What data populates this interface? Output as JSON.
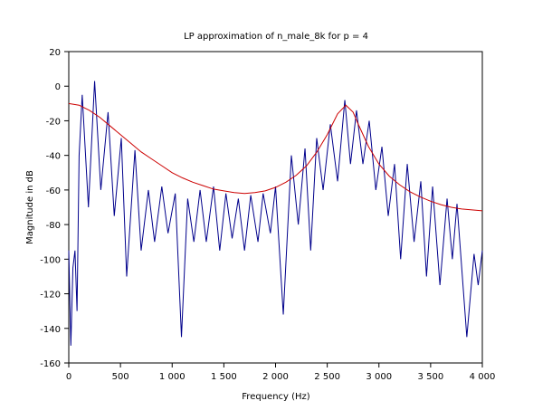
{
  "chart_data": {
    "type": "line",
    "title": "LP approximation of n_male_8k for p = 4",
    "xlabel": "Frequency (Hz)",
    "ylabel": "Magnitude in dB",
    "xlim": [
      0,
      4000
    ],
    "ylim": [
      -160,
      20
    ],
    "xticks": [
      0,
      500,
      {
        "value": 1000,
        "label": "1 000"
      },
      {
        "value": 1500,
        "label": "1 500"
      },
      {
        "value": 2000,
        "label": "2 000"
      },
      {
        "value": 2500,
        "label": "2 500"
      },
      {
        "value": 3000,
        "label": "3 000"
      },
      {
        "value": 3500,
        "label": "3 500"
      },
      {
        "value": 4000,
        "label": "4 000"
      }
    ],
    "yticks": [
      -160,
      -140,
      -120,
      -100,
      -80,
      -60,
      -40,
      -20,
      0,
      20
    ],
    "series": [
      {
        "color": "#00008b",
        "x": [
          0,
          20,
          40,
          60,
          80,
          100,
          130,
          190,
          250,
          310,
          380,
          440,
          508,
          560,
          640,
          700,
          770,
          830,
          900,
          960,
          1030,
          1090,
          1150,
          1210,
          1270,
          1330,
          1400,
          1460,
          1520,
          1580,
          1640,
          1700,
          1760,
          1830,
          1880,
          1950,
          2000,
          2075,
          2153,
          2220,
          2285,
          2340,
          2398,
          2460,
          2530,
          2600,
          2670,
          2725,
          2783,
          2845,
          2906,
          2970,
          3029,
          3090,
          3151,
          3210,
          3274,
          3340,
          3405,
          3460,
          3519,
          3590,
          3659,
          3710,
          3755,
          3850,
          3920,
          3960,
          4000
        ],
        "values": [
          -95,
          -150,
          -105,
          -95,
          -130,
          -40,
          -5,
          -70,
          3,
          -60,
          -15,
          -75,
          -30,
          -110,
          -37,
          -95,
          -60,
          -90,
          -58,
          -85,
          -62,
          -145,
          -65,
          -90,
          -60,
          -90,
          -58,
          -95,
          -62,
          -88,
          -65,
          -95,
          -63,
          -90,
          -62,
          -85,
          -58,
          -132,
          -40,
          -80,
          -36,
          -95,
          -30,
          -60,
          -22,
          -55,
          -8,
          -45,
          -14,
          -45,
          -20,
          -60,
          -35,
          -75,
          -45,
          -100,
          -45,
          -90,
          -55,
          -110,
          -58,
          -115,
          -65,
          -100,
          -68,
          -145,
          -97,
          -115,
          -95
        ]
      },
      {
        "color": "#cc0000",
        "x": [
          0,
          100,
          200,
          300,
          400,
          500,
          600,
          700,
          800,
          900,
          1000,
          1100,
          1200,
          1300,
          1400,
          1500,
          1600,
          1700,
          1800,
          1900,
          2000,
          2100,
          2200,
          2300,
          2400,
          2500,
          2600,
          2680,
          2750,
          2800,
          2900,
          3000,
          3100,
          3200,
          3300,
          3400,
          3500,
          3600,
          3700,
          3800,
          3900,
          4000
        ],
        "values": [
          -10,
          -11,
          -14,
          -18,
          -23,
          -28,
          -33,
          -38,
          -42,
          -46,
          -50,
          -53,
          -55.5,
          -57.5,
          -59.5,
          -60.5,
          -61.5,
          -62,
          -61.5,
          -60.5,
          -58.5,
          -55.5,
          -51.5,
          -46,
          -38,
          -28,
          -16,
          -11,
          -15,
          -22,
          -35,
          -45,
          -52,
          -57,
          -61,
          -64,
          -66.5,
          -68.5,
          -70,
          -71,
          -71.5,
          -72
        ]
      }
    ]
  }
}
